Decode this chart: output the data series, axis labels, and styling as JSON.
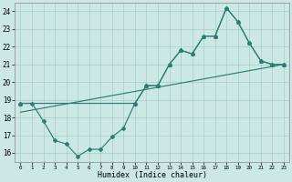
{
  "bg_color": "#cce8e5",
  "grid_color": "#a8ceca",
  "line_color": "#2e7d74",
  "xlabel": "Humidex (Indice chaleur)",
  "xlim": [
    -0.5,
    23.5
  ],
  "ylim": [
    15.5,
    24.5
  ],
  "xticks": [
    0,
    1,
    2,
    3,
    4,
    5,
    6,
    7,
    8,
    9,
    10,
    11,
    12,
    13,
    14,
    15,
    16,
    17,
    18,
    19,
    20,
    21,
    22,
    23
  ],
  "yticks": [
    16,
    17,
    18,
    19,
    20,
    21,
    22,
    23,
    24
  ],
  "line1_x": [
    0,
    1,
    2,
    3,
    4,
    5,
    6,
    7,
    8,
    9,
    10,
    11,
    12,
    13,
    14,
    15,
    16,
    17,
    18,
    19,
    20,
    21,
    22,
    23
  ],
  "line1_y": [
    18.8,
    18.8,
    17.8,
    16.7,
    16.5,
    15.8,
    16.2,
    16.2,
    16.9,
    17.4,
    18.8,
    19.8,
    19.8,
    21.0,
    21.8,
    21.6,
    22.6,
    22.6,
    24.2,
    23.4,
    22.2,
    21.2,
    21.0,
    21.0
  ],
  "line2_x": [
    0,
    10,
    11,
    12,
    13,
    14,
    15,
    16,
    17,
    18,
    19,
    20,
    21,
    22,
    23
  ],
  "line2_y": [
    18.8,
    18.8,
    19.8,
    19.8,
    21.0,
    21.8,
    21.6,
    22.6,
    22.6,
    24.2,
    23.4,
    22.2,
    21.2,
    21.0,
    21.0
  ],
  "trend_x": [
    0,
    23
  ],
  "trend_y": [
    18.3,
    21.0
  ]
}
